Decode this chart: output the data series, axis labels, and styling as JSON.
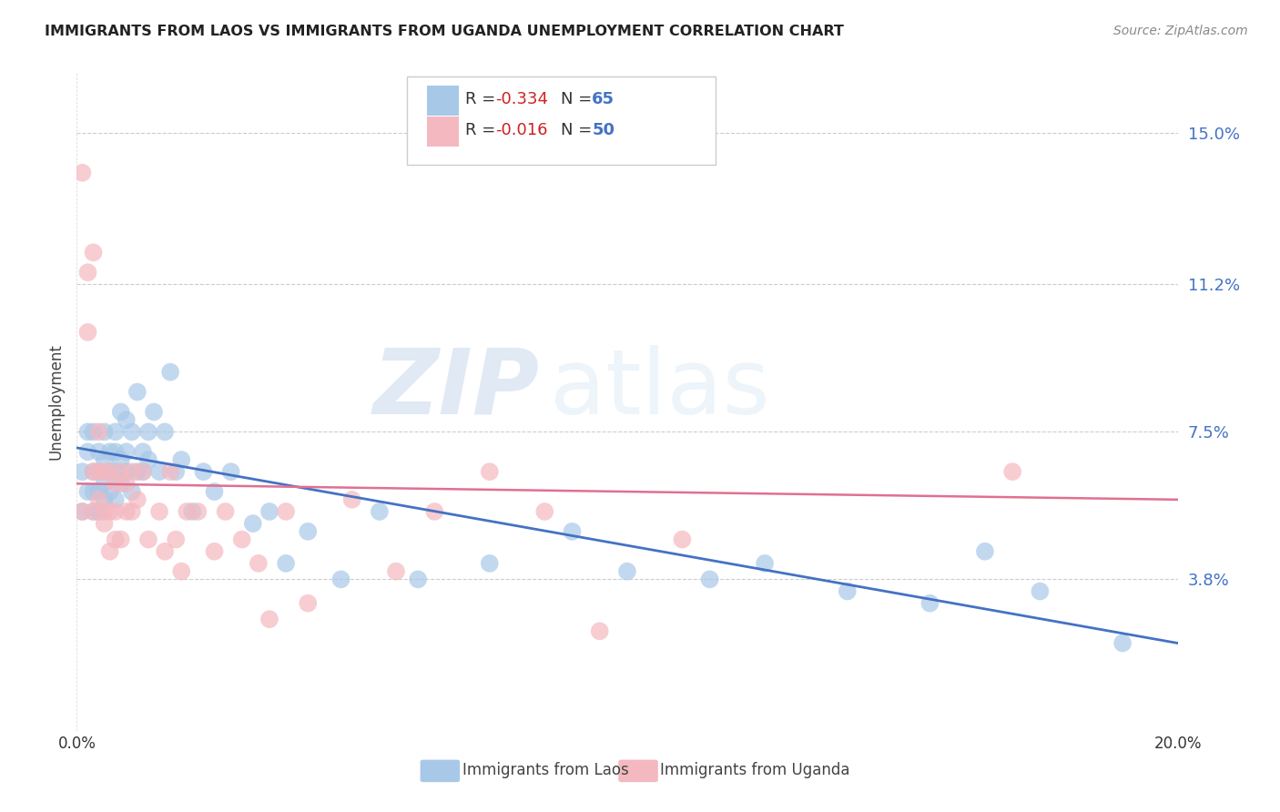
{
  "title": "IMMIGRANTS FROM LAOS VS IMMIGRANTS FROM UGANDA UNEMPLOYMENT CORRELATION CHART",
  "source": "Source: ZipAtlas.com",
  "ylabel": "Unemployment",
  "ytick_labels": [
    "15.0%",
    "11.2%",
    "7.5%",
    "3.8%"
  ],
  "ytick_values": [
    0.15,
    0.112,
    0.075,
    0.038
  ],
  "xlim": [
    0.0,
    0.2
  ],
  "ylim": [
    0.0,
    0.165
  ],
  "laos_color": "#a8c8e8",
  "uganda_color": "#f4b8c0",
  "laos_line_color": "#4472c4",
  "uganda_line_color": "#e07090",
  "laos_R": -0.334,
  "laos_N": 65,
  "uganda_R": -0.016,
  "uganda_N": 50,
  "watermark_zip": "ZIP",
  "watermark_atlas": "atlas",
  "background_color": "#ffffff",
  "laos_x": [
    0.001,
    0.001,
    0.002,
    0.002,
    0.002,
    0.003,
    0.003,
    0.003,
    0.003,
    0.004,
    0.004,
    0.004,
    0.004,
    0.005,
    0.005,
    0.005,
    0.005,
    0.006,
    0.006,
    0.006,
    0.007,
    0.007,
    0.007,
    0.007,
    0.008,
    0.008,
    0.008,
    0.009,
    0.009,
    0.009,
    0.01,
    0.01,
    0.011,
    0.011,
    0.012,
    0.012,
    0.013,
    0.013,
    0.014,
    0.015,
    0.016,
    0.017,
    0.018,
    0.019,
    0.021,
    0.023,
    0.025,
    0.028,
    0.032,
    0.035,
    0.038,
    0.042,
    0.048,
    0.055,
    0.062,
    0.075,
    0.09,
    0.1,
    0.115,
    0.125,
    0.14,
    0.155,
    0.165,
    0.175,
    0.19
  ],
  "laos_y": [
    0.065,
    0.055,
    0.06,
    0.07,
    0.075,
    0.055,
    0.06,
    0.065,
    0.075,
    0.055,
    0.06,
    0.065,
    0.07,
    0.058,
    0.062,
    0.068,
    0.075,
    0.06,
    0.065,
    0.07,
    0.058,
    0.065,
    0.07,
    0.075,
    0.062,
    0.068,
    0.08,
    0.065,
    0.07,
    0.078,
    0.06,
    0.075,
    0.065,
    0.085,
    0.065,
    0.07,
    0.068,
    0.075,
    0.08,
    0.065,
    0.075,
    0.09,
    0.065,
    0.068,
    0.055,
    0.065,
    0.06,
    0.065,
    0.052,
    0.055,
    0.042,
    0.05,
    0.038,
    0.055,
    0.038,
    0.042,
    0.05,
    0.04,
    0.038,
    0.042,
    0.035,
    0.032,
    0.045,
    0.035,
    0.022
  ],
  "uganda_x": [
    0.001,
    0.001,
    0.002,
    0.002,
    0.003,
    0.003,
    0.003,
    0.004,
    0.004,
    0.004,
    0.005,
    0.005,
    0.005,
    0.006,
    0.006,
    0.006,
    0.007,
    0.007,
    0.007,
    0.008,
    0.008,
    0.009,
    0.009,
    0.01,
    0.01,
    0.011,
    0.012,
    0.013,
    0.015,
    0.016,
    0.017,
    0.018,
    0.019,
    0.02,
    0.022,
    0.025,
    0.027,
    0.03,
    0.033,
    0.035,
    0.038,
    0.042,
    0.05,
    0.058,
    0.065,
    0.075,
    0.085,
    0.095,
    0.11,
    0.17
  ],
  "uganda_y": [
    0.14,
    0.055,
    0.1,
    0.115,
    0.12,
    0.065,
    0.055,
    0.065,
    0.058,
    0.075,
    0.052,
    0.055,
    0.065,
    0.045,
    0.055,
    0.065,
    0.048,
    0.055,
    0.062,
    0.048,
    0.065,
    0.055,
    0.062,
    0.055,
    0.065,
    0.058,
    0.065,
    0.048,
    0.055,
    0.045,
    0.065,
    0.048,
    0.04,
    0.055,
    0.055,
    0.045,
    0.055,
    0.048,
    0.042,
    0.028,
    0.055,
    0.032,
    0.058,
    0.04,
    0.055,
    0.065,
    0.055,
    0.025,
    0.048,
    0.065
  ],
  "laos_trendline_x": [
    0.0,
    0.2
  ],
  "laos_trendline_y": [
    0.071,
    0.022
  ],
  "uganda_trendline_x": [
    0.0,
    0.2
  ],
  "uganda_trendline_y": [
    0.062,
    0.058
  ]
}
